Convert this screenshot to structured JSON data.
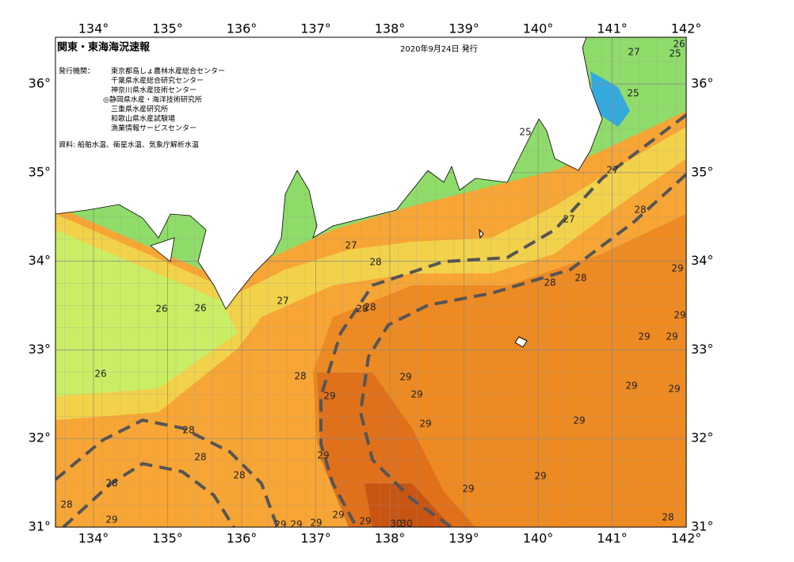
{
  "header": {
    "title": "関東・東海海況速報",
    "date": "2020年9月24日 発行"
  },
  "publisher": {
    "label": "発行機関：",
    "organizations": [
      "東京都島しょ農林水産総合センター",
      "千葉県水産総合研究センター",
      "神奈川県水産技術センター",
      "◎静岡県水産・海洋技術研究所",
      "三重県水産研究所",
      "和歌山県水産試験場",
      "漁業情報サービスセンター"
    ]
  },
  "source": "資料: 船舶水温、衛星水温、気象庁解析水温",
  "lon_ticks": [
    {
      "value": 134,
      "label": "134°"
    },
    {
      "value": 135,
      "label": "135°"
    },
    {
      "value": 136,
      "label": "136°"
    },
    {
      "value": 137,
      "label": "137°"
    },
    {
      "value": 138,
      "label": "138°"
    },
    {
      "value": 139,
      "label": "139°"
    },
    {
      "value": 140,
      "label": "140°"
    },
    {
      "value": 141,
      "label": "141°"
    },
    {
      "value": 142,
      "label": "142°"
    }
  ],
  "lat_ticks": [
    {
      "value": 31,
      "label": "31°"
    },
    {
      "value": 32,
      "label": "32°"
    },
    {
      "value": 33,
      "label": "33°"
    },
    {
      "value": 34,
      "label": "34°"
    },
    {
      "value": 35,
      "label": "35°"
    },
    {
      "value": 36,
      "label": "36°"
    }
  ],
  "contour_labels": [
    "27",
    "25",
    "26",
    "25",
    "25",
    "27",
    "28",
    "27",
    "27",
    "28",
    "28",
    "29",
    "28",
    "27",
    "26",
    "26",
    "28",
    "28",
    "29",
    "29",
    "29",
    "26",
    "28",
    "29",
    "29",
    "29",
    "29",
    "29",
    "29",
    "29",
    "28",
    "28",
    "29",
    "28",
    "29",
    "28",
    "29",
    "28",
    "29",
    "29",
    "29",
    "28",
    "29",
    "29",
    "29",
    "30",
    "30"
  ]
}
